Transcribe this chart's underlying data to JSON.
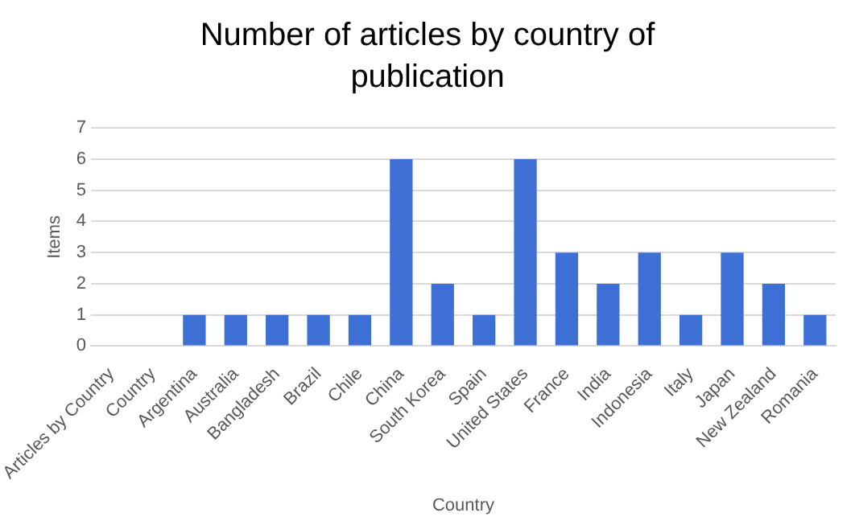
{
  "chart_data": {
    "type": "bar",
    "title": "Number of articles by country of publication",
    "xlabel": "Country",
    "ylabel": "Items",
    "categories": [
      "Articles by Country",
      "Country",
      "Argentina",
      "Australia",
      "Bangladesh",
      "Brazil",
      "Chile",
      "China",
      "South Korea",
      "Spain",
      "United States",
      "France",
      "India",
      "Indonesia",
      "Italy",
      "Japan",
      "New Zealand",
      "Romania"
    ],
    "values": [
      0,
      0,
      1,
      1,
      1,
      1,
      1,
      6,
      2,
      1,
      6,
      3,
      2,
      3,
      1,
      3,
      2,
      1
    ],
    "color": "#3e6fd4",
    "ylim": [
      0,
      7
    ],
    "yticks": [
      0,
      1,
      2,
      3,
      4,
      5,
      6,
      7
    ],
    "grid": "y",
    "legend": false
  }
}
